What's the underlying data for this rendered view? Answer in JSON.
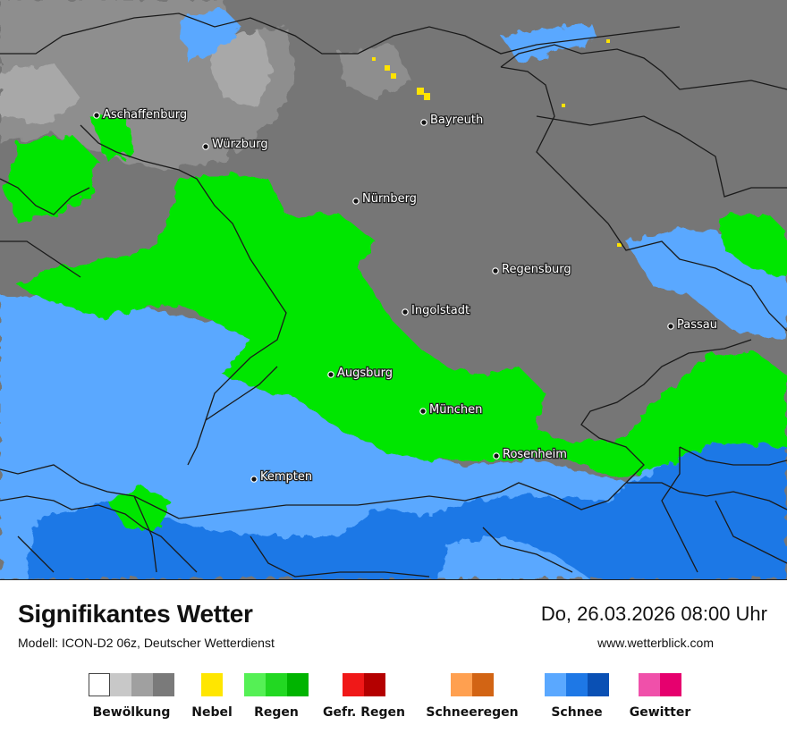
{
  "colors": {
    "cloud_dark": "#767676",
    "cloud_mid": "#8e8e8e",
    "cloud_light": "#a8a8a8",
    "rain": "#00e600",
    "snow_light": "#5aa8ff",
    "snow_mid": "#1e78e6",
    "fog": "#ffe300",
    "border": "#1a1a1a"
  },
  "cities": [
    {
      "name": "Aschaffenburg",
      "icon": "city-dot-icon"
    },
    {
      "name": "Würzburg",
      "icon": "city-dot-icon"
    },
    {
      "name": "Bayreuth",
      "icon": "city-dot-icon"
    },
    {
      "name": "Nürnberg",
      "icon": "city-dot-icon"
    },
    {
      "name": "Regensburg",
      "icon": "city-dot-icon"
    },
    {
      "name": "Ingolstadt",
      "icon": "city-dot-icon"
    },
    {
      "name": "Passau",
      "icon": "city-dot-icon"
    },
    {
      "name": "Augsburg",
      "icon": "city-dot-icon"
    },
    {
      "name": "München",
      "icon": "city-dot-icon"
    },
    {
      "name": "Rosenheim",
      "icon": "city-dot-icon"
    },
    {
      "name": "Kempten",
      "icon": "city-dot-icon"
    }
  ],
  "footer": {
    "title": "Signifikantes Wetter",
    "subtitle": "Modell: ICON-D2 06z, Deutscher Wetterdienst",
    "datetime": "Do, 26.03.2026 08:00 Uhr",
    "website": "www.wetterblick.com"
  },
  "legend": [
    {
      "label": "Bewölkung",
      "colors": [
        "#ffffff",
        "#c8c8c8",
        "#a0a0a0",
        "#7a7a7a"
      ]
    },
    {
      "label": "Nebel",
      "colors": [
        "#ffe600"
      ]
    },
    {
      "label": "Regen",
      "colors": [
        "#55f055",
        "#22d822",
        "#00b400"
      ]
    },
    {
      "label": "Gefr. Regen",
      "colors": [
        "#f01818",
        "#b40000"
      ]
    },
    {
      "label": "Schneeregen",
      "colors": [
        "#ffa050",
        "#d26414"
      ]
    },
    {
      "label": "Schnee",
      "colors": [
        "#5aa8ff",
        "#1e78e6",
        "#0a50b4"
      ]
    },
    {
      "label": "Gewitter",
      "colors": [
        "#f050aa",
        "#e6006e"
      ]
    }
  ]
}
